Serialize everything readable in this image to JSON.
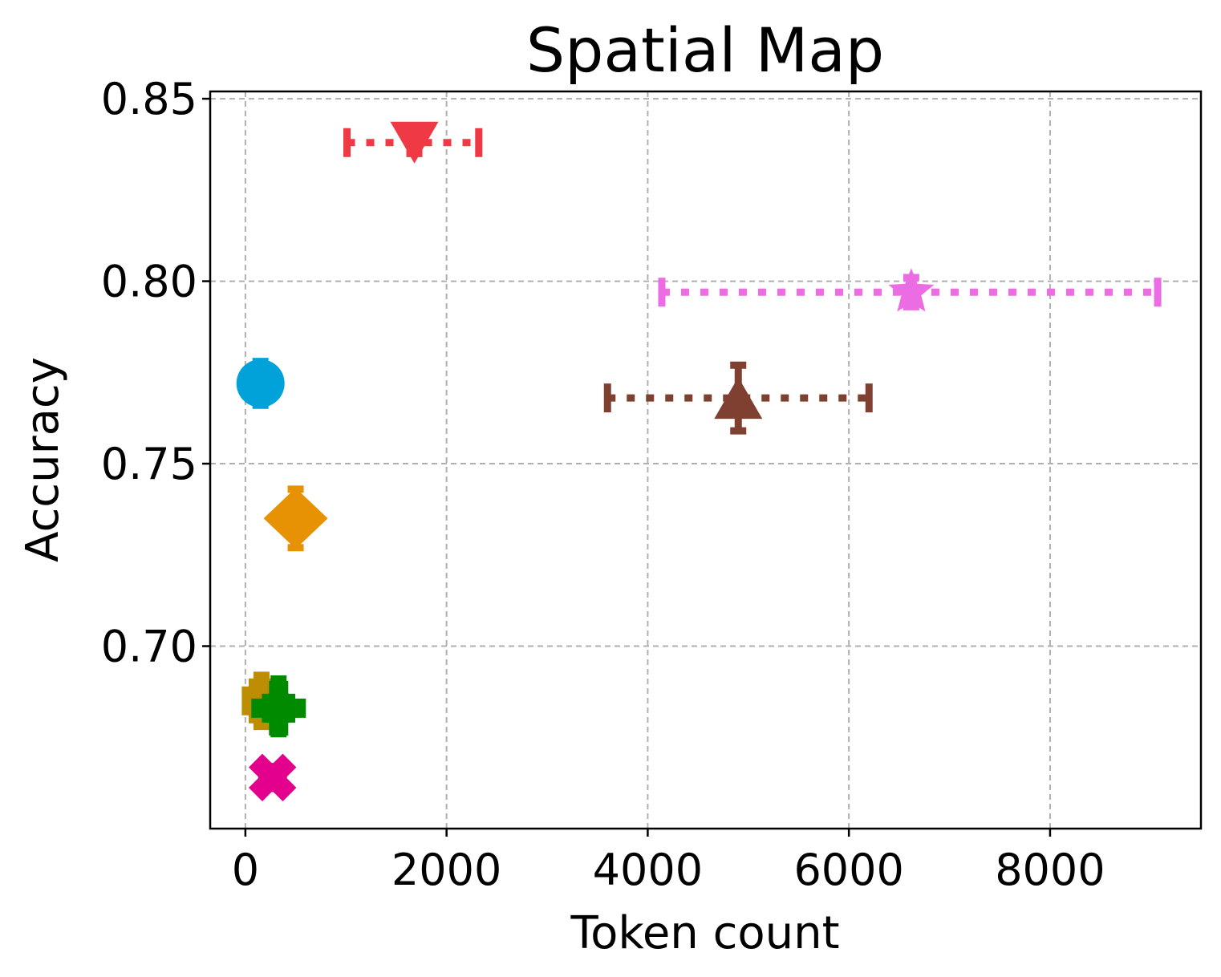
{
  "chart_data": {
    "type": "scatter",
    "title": "Spatial Map",
    "xlabel": "Token count",
    "ylabel": "Accuracy",
    "xlim": [
      -350,
      9500
    ],
    "ylim": [
      0.65,
      0.852
    ],
    "xticks": [
      0,
      2000,
      4000,
      6000,
      8000
    ],
    "xtick_labels": [
      "0",
      "2000",
      "4000",
      "6000",
      "8000"
    ],
    "yticks": [
      0.7,
      0.75,
      0.8,
      0.85
    ],
    "ytick_labels": [
      "0.70",
      "0.75",
      "0.80",
      "0.85"
    ],
    "grid": true,
    "legend": "none",
    "series": [
      {
        "marker": "triangle-down",
        "color": "#ef3a46",
        "x": 1680,
        "y": 0.838,
        "x_err": [
          1010,
          2320
        ],
        "y_err": [
          0.835,
          0.841
        ]
      },
      {
        "marker": "star",
        "color": "#ec6de3",
        "x": 6620,
        "y": 0.797,
        "x_err": [
          4140,
          9070
        ],
        "y_err": [
          0.793,
          0.801
        ]
      },
      {
        "marker": "circle",
        "color": "#00a2d9",
        "x": 150,
        "y": 0.772,
        "x_err": [
          100,
          200
        ],
        "y_err": [
          0.766,
          0.778
        ]
      },
      {
        "marker": "triangle-up",
        "color": "#7f4031",
        "x": 4900,
        "y": 0.768,
        "x_err": [
          3600,
          6200
        ],
        "y_err": [
          0.759,
          0.777
        ]
      },
      {
        "marker": "diamond",
        "color": "#e69202",
        "x": 500,
        "y": 0.735,
        "x_err": [
          470,
          530
        ],
        "y_err": [
          0.727,
          0.743
        ]
      },
      {
        "marker": "square",
        "color": "#bd8d03",
        "x": 160,
        "y": 0.685,
        "x_err": [
          0,
          320
        ],
        "y_err": [
          0.678,
          0.692
        ]
      },
      {
        "marker": "plus",
        "color": "#008a00",
        "x": 330,
        "y": 0.683,
        "x_err": [
          200,
          460
        ],
        "y_err": [
          0.676,
          0.691
        ]
      },
      {
        "marker": "x",
        "color": "#e3008c",
        "x": 270,
        "y": 0.664,
        "x_err": [
          240,
          300
        ],
        "y_err": [
          0.662,
          0.666
        ]
      }
    ]
  }
}
